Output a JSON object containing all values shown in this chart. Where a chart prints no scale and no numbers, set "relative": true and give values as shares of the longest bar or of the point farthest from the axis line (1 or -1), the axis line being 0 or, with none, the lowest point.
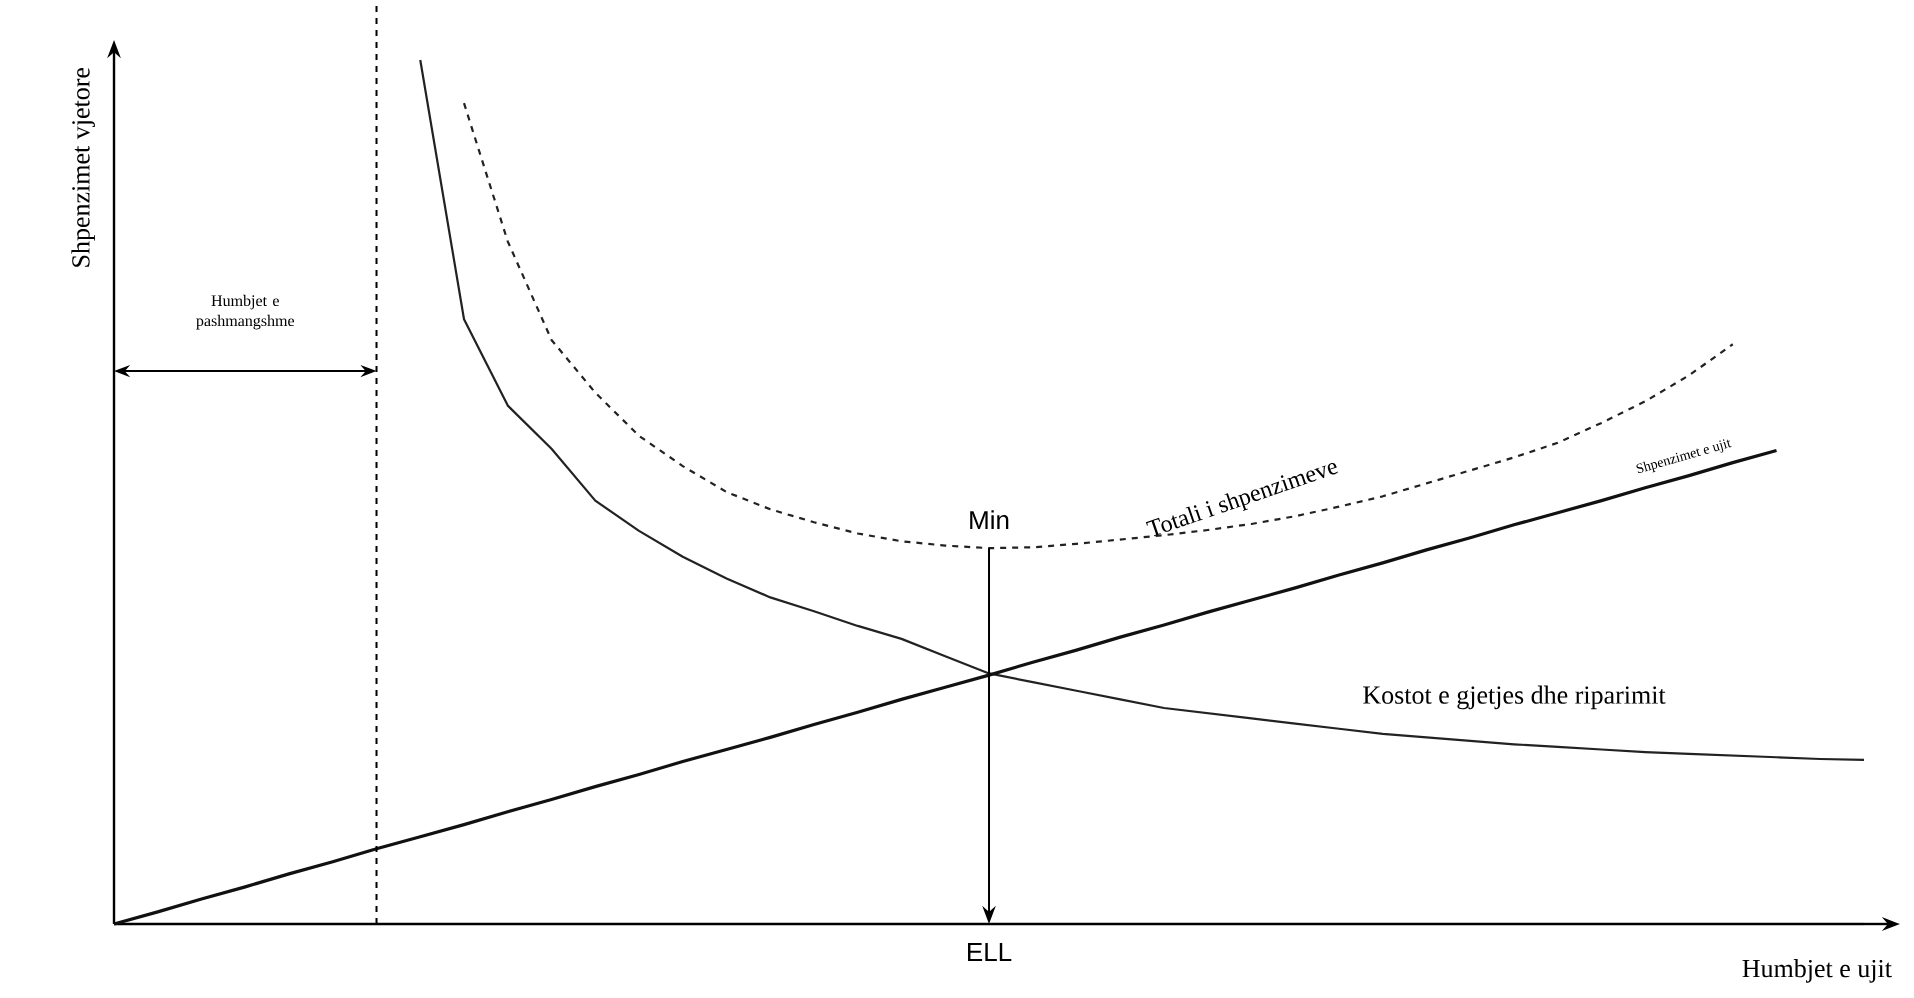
{
  "chart_data": {
    "type": "line",
    "relative": true,
    "xlabel": "Humbjet e ujit",
    "ylabel": "Shpenzimet vjetore",
    "marker": "none",
    "categories": [
      null,
      null,
      null,
      null,
      null,
      null,
      null,
      null,
      null,
      null,
      null,
      null,
      null,
      null,
      null,
      null,
      null,
      null,
      null,
      null,
      null,
      null,
      null,
      null,
      null,
      null,
      null,
      null,
      null,
      null,
      null,
      null,
      null,
      null,
      null,
      null,
      null,
      null,
      null,
      null,
      null
    ],
    "series": [
      {
        "name": "Kostot e gjetjes dhe riparimit",
        "color": "#222222",
        "line_style": "solid",
        "values": [
          null,
          null,
          null,
          null,
          null,
          null,
          null,
          1.0,
          0.7,
          0.6,
          0.55,
          0.49,
          0.455,
          0.425,
          0.4,
          0.378,
          0.362,
          0.345,
          0.33,
          0.31,
          0.29,
          0.28,
          0.27,
          0.26,
          0.25,
          0.244,
          0.238,
          0.232,
          0.226,
          0.22,
          0.216,
          0.212,
          0.208,
          0.205,
          0.202,
          0.199,
          0.197,
          0.195,
          0.193,
          0.191,
          0.19
        ]
      },
      {
        "name": "Totali i shpenzimeve",
        "color": "#222222",
        "line_style": "dashed",
        "values": [
          null,
          null,
          null,
          null,
          null,
          null,
          null,
          null,
          0.95,
          0.79,
          0.676,
          0.615,
          0.565,
          0.53,
          0.5,
          0.48,
          0.465,
          0.452,
          0.443,
          0.438,
          0.435,
          0.436,
          0.44,
          0.445,
          0.45,
          0.456,
          0.463,
          0.472,
          0.483,
          0.495,
          0.51,
          0.525,
          0.54,
          0.557,
          0.58,
          0.605,
          0.635,
          0.671,
          null,
          null,
          null
        ]
      },
      {
        "name": "Shpenzimet e ujit",
        "color": "#111111",
        "line_style": "solid",
        "values": [
          0,
          0.014,
          0.029,
          0.043,
          0.058,
          0.072,
          0.087,
          0.101,
          0.115,
          0.13,
          0.144,
          0.159,
          0.173,
          0.188,
          0.202,
          0.216,
          0.231,
          0.245,
          0.26,
          0.274,
          0.288,
          0.303,
          0.317,
          0.332,
          0.346,
          0.361,
          0.375,
          0.389,
          0.404,
          0.418,
          0.433,
          0.447,
          0.462,
          0.476,
          0.49,
          0.505,
          0.519,
          0.534,
          0.548,
          null,
          null
        ]
      }
    ],
    "annotations": [
      "Humbjet e pashmangshme",
      "Min",
      "ELL"
    ]
  }
}
